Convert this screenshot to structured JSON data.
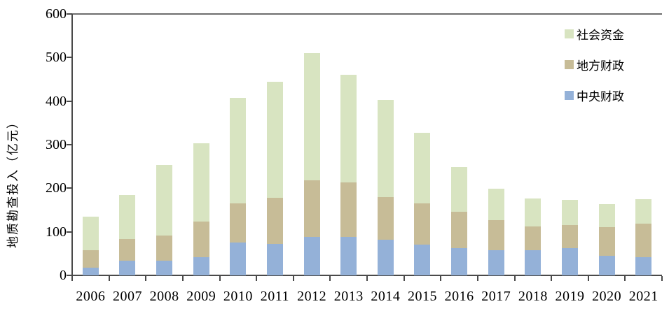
{
  "chart_data": {
    "type": "bar",
    "stacked": true,
    "title": "",
    "xlabel": "",
    "ylabel": "地质勘查投入（亿元）",
    "ylim": [
      0,
      600
    ],
    "yticks": [
      0,
      100,
      200,
      300,
      400,
      500,
      600
    ],
    "grid": false,
    "legend_position": "top-right",
    "categories": [
      "2006",
      "2007",
      "2008",
      "2009",
      "2010",
      "2011",
      "2012",
      "2013",
      "2014",
      "2015",
      "2016",
      "2017",
      "2018",
      "2019",
      "2020",
      "2021"
    ],
    "series": [
      {
        "name": "中央财政",
        "key": "central-finance",
        "color": "#94b1d8",
        "values": [
          18,
          34,
          34,
          42,
          75,
          73,
          89,
          88,
          82,
          70,
          62,
          57,
          57,
          62,
          45,
          41
        ]
      },
      {
        "name": "地方财政",
        "key": "local-finance",
        "color": "#c7bc97",
        "values": [
          39,
          49,
          58,
          81,
          91,
          105,
          129,
          126,
          97,
          96,
          84,
          69,
          55,
          53,
          65,
          78
        ]
      },
      {
        "name": "社会资金",
        "key": "social-funds",
        "color": "#d8e4c1",
        "values": [
          78,
          102,
          161,
          181,
          242,
          267,
          292,
          247,
          224,
          162,
          102,
          73,
          65,
          59,
          53,
          56
        ]
      }
    ],
    "totals": [
      135,
      185,
      253,
      304,
      408,
      445,
      510,
      461,
      403,
      328,
      248,
      199,
      177,
      174,
      163,
      175
    ]
  },
  "colors": {
    "axis": "#4a4a4a",
    "plot_top_border": "#6d6d6d",
    "background": "#ffffff"
  }
}
